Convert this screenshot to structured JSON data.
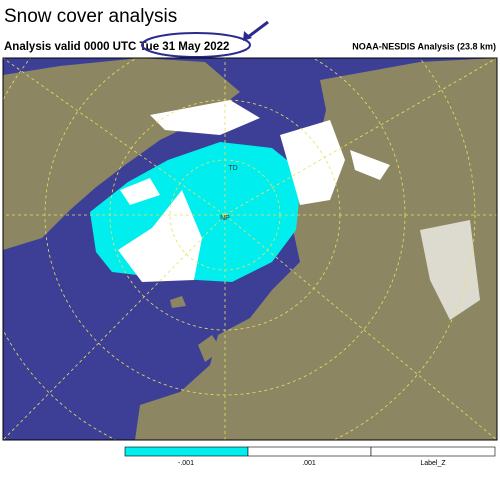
{
  "header": {
    "title": "Snow cover analysis",
    "subtitle": "Analysis valid 0000 UTC Tue 31 May 2022",
    "source": "NOAA-NESDIS Analysis (23.8 km)"
  },
  "map": {
    "labels": [
      "TD",
      "NP"
    ]
  },
  "legend": {
    "labels": [
      "-.001",
      ".001",
      "Label_Z"
    ]
  }
}
